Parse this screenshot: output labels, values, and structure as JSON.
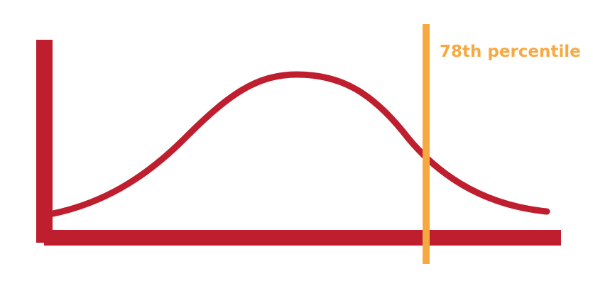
{
  "diagram": {
    "type": "normal-distribution",
    "colors": {
      "curve": "#be1e2d",
      "axes": "#be1e2d",
      "marker": "#f7a941",
      "background": "#ffffff"
    },
    "marker": {
      "percentile": 78,
      "label": "78th percentile"
    }
  }
}
